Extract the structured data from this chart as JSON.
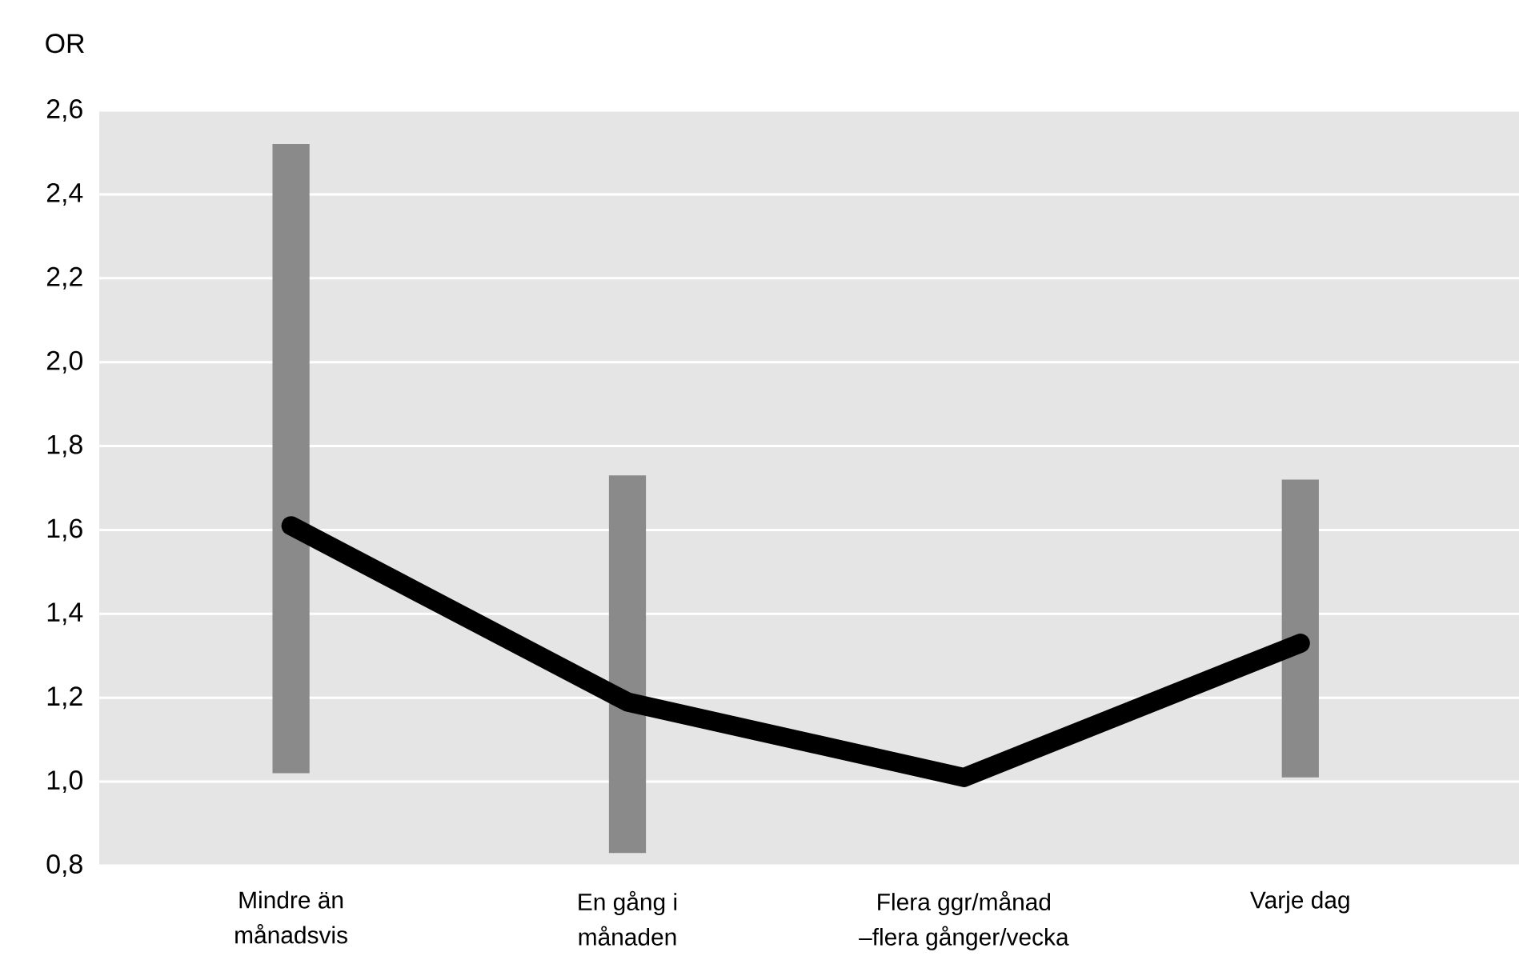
{
  "chart_data": {
    "type": "bar",
    "ylabel": "OR",
    "categories": [
      "Mindre än månadsvis",
      "En gång i månaden",
      "Flera ggr/månad –flera gånger/vecka",
      "Varje dag"
    ],
    "series": [
      {
        "color": "#8a8a8a",
        "base": [
          1.02,
          0.83,
          null,
          1.01
        ],
        "values": [
          1.5,
          0.9,
          null,
          0.71
        ]
      },
      {
        "type": "line",
        "color": "#000000",
        "values": [
          1.61,
          1.19,
          1.01,
          1.33
        ]
      }
    ],
    "ylim": [
      0.8,
      2.6
    ],
    "yticks": [
      {
        "value": 0.8,
        "label": "0,8"
      },
      {
        "value": 1.0,
        "label": "1,0"
      },
      {
        "value": 1.2,
        "label": "1,2"
      },
      {
        "value": 1.4,
        "label": "1,4"
      },
      {
        "value": 1.6,
        "label": "1,6"
      },
      {
        "value": 1.8,
        "label": "1,8"
      },
      {
        "value": 2.0,
        "label": "2,0"
      },
      {
        "value": 2.2,
        "label": "2,2"
      },
      {
        "value": 2.4,
        "label": "2,4"
      },
      {
        "value": 2.6,
        "label": "2,6"
      }
    ],
    "grid": "y"
  }
}
